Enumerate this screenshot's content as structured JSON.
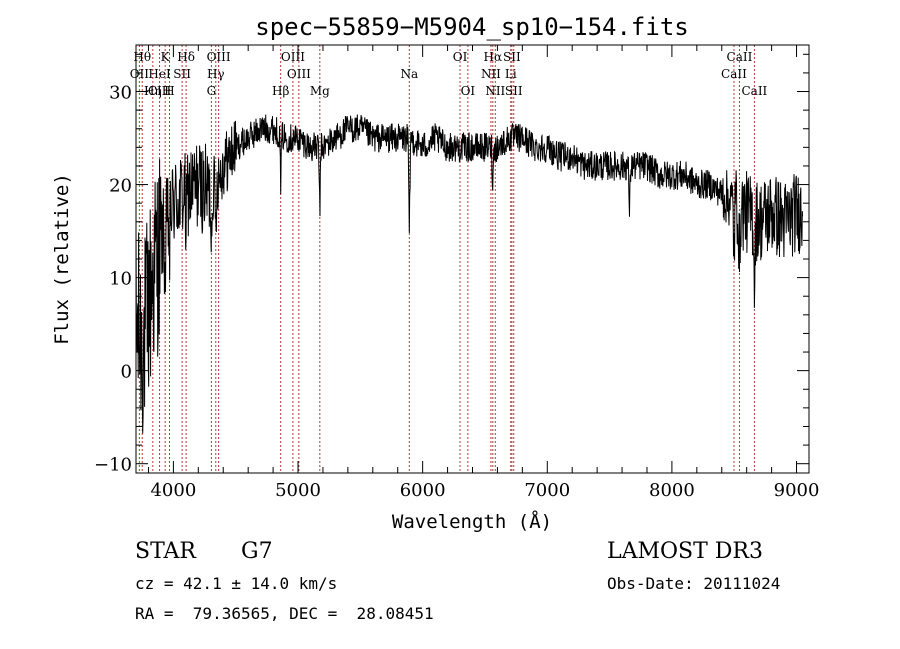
{
  "chart_data": {
    "type": "line",
    "title": "spec−55859−M5904_sp10−154.fits",
    "xlabel": "Wavelength (Å)",
    "ylabel": "Flux (relative)",
    "xlim": [
      3700,
      9100
    ],
    "ylim": [
      -11,
      35
    ],
    "x_ticks": [
      {
        "value": 4000,
        "label": "4000"
      },
      {
        "value": 5000,
        "label": "5000"
      },
      {
        "value": 6000,
        "label": "6000"
      },
      {
        "value": 7000,
        "label": "7000"
      },
      {
        "value": 8000,
        "label": "8000"
      },
      {
        "value": 9000,
        "label": "9000"
      }
    ],
    "y_ticks": [
      {
        "value": -10,
        "label": "−10"
      },
      {
        "value": 0,
        "label": "0"
      },
      {
        "value": 10,
        "label": "10"
      },
      {
        "value": 20,
        "label": "20"
      },
      {
        "value": 30,
        "label": "30"
      }
    ],
    "grid": false,
    "series": [
      {
        "name": "flux",
        "anchors": [
          [
            3700,
            5
          ],
          [
            3760,
            3
          ],
          [
            3800,
            7
          ],
          [
            3850,
            11
          ],
          [
            3900,
            14
          ],
          [
            3950,
            16
          ],
          [
            4000,
            18
          ],
          [
            4100,
            19
          ],
          [
            4200,
            20
          ],
          [
            4300,
            19
          ],
          [
            4400,
            22
          ],
          [
            4500,
            24
          ],
          [
            4600,
            25
          ],
          [
            4700,
            26
          ],
          [
            4800,
            26
          ],
          [
            4900,
            25
          ],
          [
            5000,
            25
          ],
          [
            5100,
            24
          ],
          [
            5200,
            24
          ],
          [
            5300,
            25
          ],
          [
            5400,
            26
          ],
          [
            5500,
            26
          ],
          [
            5600,
            25
          ],
          [
            5700,
            25
          ],
          [
            5800,
            25
          ],
          [
            5900,
            25
          ],
          [
            6000,
            24
          ],
          [
            6100,
            25
          ],
          [
            6200,
            24
          ],
          [
            6300,
            24
          ],
          [
            6400,
            24
          ],
          [
            6500,
            24
          ],
          [
            6600,
            24
          ],
          [
            6700,
            25
          ],
          [
            6800,
            25
          ],
          [
            6900,
            24
          ],
          [
            7000,
            24
          ],
          [
            7100,
            23
          ],
          [
            7200,
            23
          ],
          [
            7300,
            22
          ],
          [
            7400,
            22
          ],
          [
            7500,
            22
          ],
          [
            7600,
            22
          ],
          [
            7700,
            22
          ],
          [
            7800,
            22
          ],
          [
            7900,
            21
          ],
          [
            8000,
            21
          ],
          [
            8100,
            21
          ],
          [
            8200,
            20
          ],
          [
            8300,
            20
          ],
          [
            8400,
            19
          ],
          [
            8500,
            18
          ],
          [
            8600,
            17
          ],
          [
            8700,
            16
          ],
          [
            8800,
            17
          ],
          [
            8900,
            16
          ],
          [
            9000,
            17
          ],
          [
            9050,
            17
          ]
        ],
        "features": [
          {
            "w": 3934,
            "depth": 6
          },
          {
            "w": 3969,
            "depth": 5
          },
          {
            "w": 4102,
            "depth": 4
          },
          {
            "w": 4305,
            "depth": 5
          },
          {
            "w": 4340,
            "depth": 5
          },
          {
            "w": 4861,
            "depth": 5
          },
          {
            "w": 5175,
            "depth": 7
          },
          {
            "w": 5893,
            "depth": 11
          },
          {
            "w": 6563,
            "depth": 4
          },
          {
            "w": 7660,
            "depth": 5
          },
          {
            "w": 8498,
            "depth": 6
          },
          {
            "w": 8542,
            "depth": 7
          },
          {
            "w": 8662,
            "depth": 7
          }
        ]
      }
    ],
    "line_markers": [
      {
        "w": 3750,
        "label": "Hθ",
        "row": 1
      },
      {
        "w": 3727,
        "label": "OII",
        "row": 2
      },
      {
        "w": 3835,
        "label": "Hη",
        "row": 3
      },
      {
        "w": 3889,
        "label": "CIII",
        "row": 3
      },
      {
        "w": 3934,
        "label": "K",
        "row": 1
      },
      {
        "w": 3889,
        "label": "HeI",
        "row": 2
      },
      {
        "w": 3969,
        "label": "H",
        "row": 3
      },
      {
        "w": 4070,
        "label": "SII",
        "row": 2
      },
      {
        "w": 4102,
        "label": "Hδ",
        "row": 1
      },
      {
        "w": 4363,
        "label": "OIII",
        "row": 1
      },
      {
        "w": 4340,
        "label": "Hγ",
        "row": 2
      },
      {
        "w": 4305,
        "label": "G",
        "row": 3
      },
      {
        "w": 4861,
        "label": "Hβ",
        "row": 3
      },
      {
        "w": 4959,
        "label": "OIII",
        "row": 1
      },
      {
        "w": 5007,
        "label": "OIII",
        "row": 2
      },
      {
        "w": 5175,
        "label": "Mg",
        "row": 3
      },
      {
        "w": 5893,
        "label": "Na",
        "row": 2
      },
      {
        "w": 6300,
        "label": "OI",
        "row": 1
      },
      {
        "w": 6363,
        "label": "OI",
        "row": 3
      },
      {
        "w": 6548,
        "label": "NII",
        "row": 2
      },
      {
        "w": 6563,
        "label": "Hα",
        "row": 1
      },
      {
        "w": 6583,
        "label": "NII",
        "row": 3
      },
      {
        "w": 6707,
        "label": "Li",
        "row": 2
      },
      {
        "w": 6716,
        "label": "SII",
        "row": 1
      },
      {
        "w": 6731,
        "label": "SII",
        "row": 3
      },
      {
        "w": 8498,
        "label": "CaII",
        "row": 2
      },
      {
        "w": 8542,
        "label": "CaII",
        "row": 1
      },
      {
        "w": 8662,
        "label": "CaII",
        "row": 3
      }
    ]
  },
  "info": {
    "object_class": "STAR",
    "subclass": "G7",
    "survey": "LAMOST DR3",
    "redshift_line": "cz = 42.1 ± 14.0 km/s",
    "obs_date_line": "Obs-Date: 20111024",
    "coords_line": "RA =  79.36565, DEC =  28.08451"
  },
  "colors": {
    "spectrum": "#000000",
    "marker": "#b23a3a",
    "axis": "#000000",
    "background": "#ffffff"
  }
}
